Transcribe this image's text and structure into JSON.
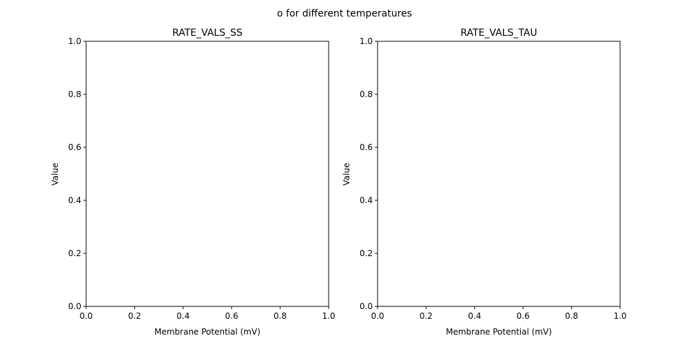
{
  "figure": {
    "suptitle": "o for different temperatures"
  },
  "chart_data": [
    {
      "type": "line",
      "title": "RATE_VALS_SS",
      "xlabel": "Membrane Potential (mV)",
      "ylabel": "Value",
      "xlim": [
        0,
        1
      ],
      "ylim": [
        0,
        1
      ],
      "xticks": [
        0,
        0.2,
        0.4,
        0.6,
        0.8,
        1.0
      ],
      "xtick_labels": [
        "0.0",
        "0.2",
        "0.4",
        "0.6",
        "0.8",
        "1.0"
      ],
      "yticks": [
        0,
        0.2,
        0.4,
        0.6,
        0.8,
        1.0
      ],
      "ytick_labels": [
        "0.0",
        "0.2",
        "0.4",
        "0.6",
        "0.8",
        "1.0"
      ],
      "grid": false,
      "series": []
    },
    {
      "type": "line",
      "title": "RATE_VALS_TAU",
      "xlabel": "Membrane Potential (mV)",
      "ylabel": "Value",
      "xlim": [
        0,
        1
      ],
      "ylim": [
        0,
        1
      ],
      "xticks": [
        0,
        0.2,
        0.4,
        0.6,
        0.8,
        1.0
      ],
      "xtick_labels": [
        "0.0",
        "0.2",
        "0.4",
        "0.6",
        "0.8",
        "1.0"
      ],
      "yticks": [
        0,
        0.2,
        0.4,
        0.6,
        0.8,
        1.0
      ],
      "ytick_labels": [
        "0.0",
        "0.2",
        "0.4",
        "0.6",
        "0.8",
        "1.0"
      ],
      "grid": false,
      "series": []
    }
  ]
}
